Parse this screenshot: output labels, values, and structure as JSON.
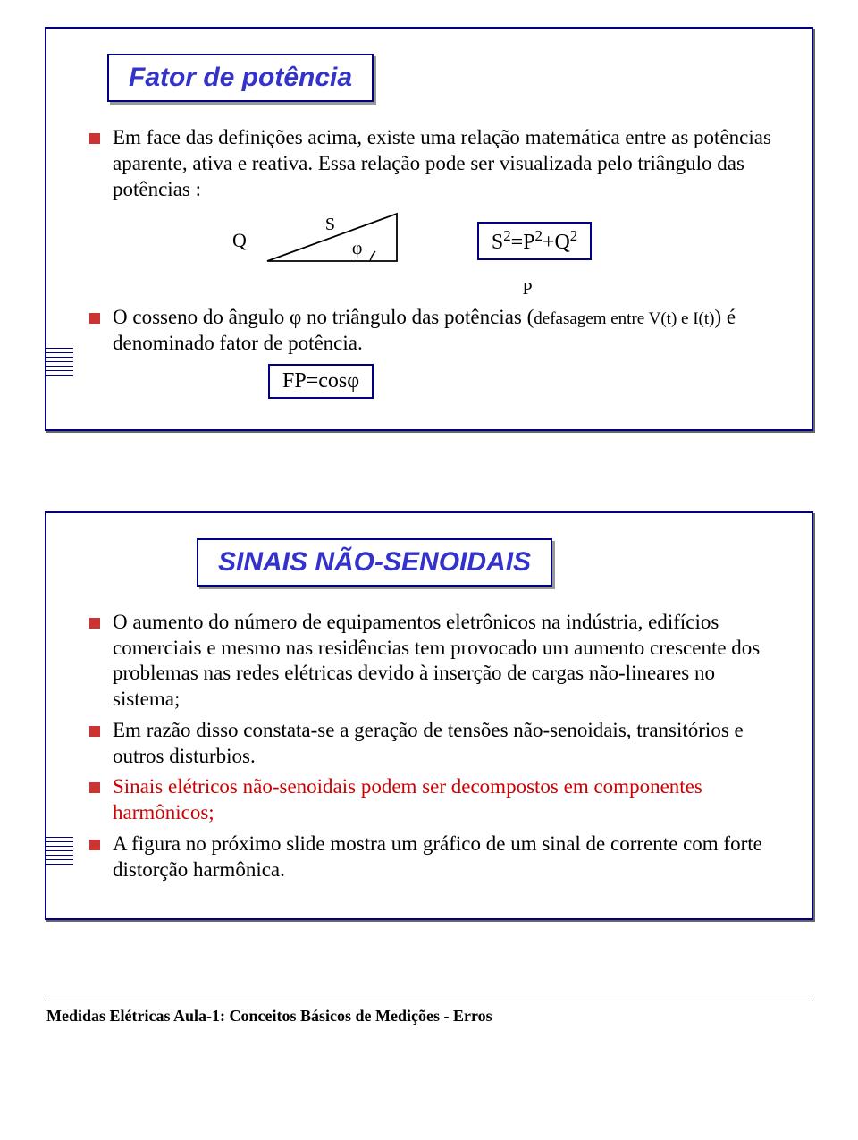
{
  "slide1": {
    "title": "Fator de potência",
    "b1": "Em face das definições acima, existe uma relação matemática entre as potências aparente, ativa e reativa. Essa relação pode ser visualizada pelo triângulo das potências :",
    "q": "Q",
    "s": "S",
    "phi": "φ",
    "p": "P",
    "formula1_html": "S<sup>2</sup>=P<sup>2</sup>+Q<sup>2</sup>",
    "b2_pre": "O cosseno do ângulo φ no triângulo das potências (",
    "b2_small": "defasagem entre V(t) e I(t)",
    "b2_post": ") é denominado fator de potência.",
    "formula2": "FP=cosφ"
  },
  "slide2": {
    "title": "SINAIS NÃO-SENOIDAIS",
    "b1": "O aumento do número de equipamentos eletrônicos na indústria, edifícios comerciais e mesmo nas residências tem provocado  um aumento crescente dos problemas nas redes elétricas devido à inserção de cargas não-lineares no sistema;",
    "b2": "Em razão disso constata-se a geração de tensões não-senoidais, transitórios e outros disturbios.",
    "b3": "Sinais elétricos não-senoidais  podem ser decompostos em componentes harmônicos;",
    "b4": "A figura no próximo slide mostra um gráfico de um sinal de corrente com forte distorção harmônica."
  },
  "footer": "Medidas Elétricas  Aula-1: Conceitos Básicos de Medições - Erros"
}
